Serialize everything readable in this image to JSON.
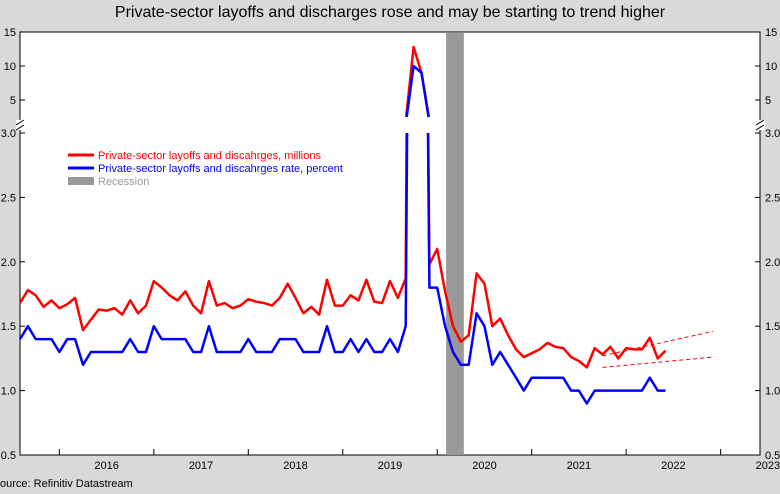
{
  "chart_data": {
    "type": "line",
    "title": "Private-sector layoffs and discharges rose and may be starting to trend higher",
    "source": "ource: Refinitiv Datastream",
    "x_tick_labels": [
      "2016",
      "2017",
      "2018",
      "2019",
      "2020",
      "2021",
      "2022",
      "2023"
    ],
    "x_range": [
      "2015-08",
      "2023-06"
    ],
    "y_upper_ticks": [
      "15",
      "10",
      "5"
    ],
    "y_lower_ticks": [
      "3.0",
      "2.5",
      "2.0",
      "1.5",
      "1.0",
      "0.5"
    ],
    "y_upper_range": [
      2.5,
      15
    ],
    "y_lower_range": [
      0.5,
      3.0
    ],
    "axis_break": "broken y-axis between 3.0 and 5",
    "grid": false,
    "legend_position": "top-left",
    "legend": [
      {
        "label": "Private-sector layoffs and discahrges, millions",
        "color": "#ff0000"
      },
      {
        "label": "Private-sector layoffs and discahrges rate, percent",
        "color": "#0000ff"
      },
      {
        "label": "Recession",
        "color": "#999999"
      }
    ],
    "recession": {
      "start": "2020-02",
      "end": "2020-04"
    },
    "start_date": "2015-08",
    "series": [
      {
        "name": "Private-sector layoffs and discahrges, millions",
        "color": "#ff0000",
        "values": [
          1.68,
          1.78,
          1.74,
          1.65,
          1.7,
          1.64,
          1.67,
          1.72,
          1.47,
          1.55,
          1.63,
          1.62,
          1.64,
          1.59,
          1.7,
          1.6,
          1.66,
          1.85,
          1.8,
          1.74,
          1.7,
          1.77,
          1.66,
          1.6,
          1.85,
          1.66,
          1.68,
          1.64,
          1.66,
          1.71,
          1.69,
          1.68,
          1.66,
          1.72,
          1.83,
          1.72,
          1.6,
          1.65,
          1.59,
          1.86,
          1.66,
          1.66,
          1.74,
          1.7,
          1.86,
          1.69,
          1.68,
          1.85,
          1.72,
          1.87,
          12.8,
          9.0,
          1.98,
          2.1,
          1.77,
          1.5,
          1.38,
          1.43,
          1.91,
          1.83,
          1.5,
          1.56,
          1.43,
          1.32,
          1.26,
          1.29,
          1.32,
          1.37,
          1.34,
          1.33,
          1.26,
          1.23,
          1.18,
          1.33,
          1.28,
          1.34,
          1.25,
          1.33,
          1.32,
          1.32,
          1.41,
          1.25,
          1.31
        ],
        "trend_lines": [
          {
            "from": [
              "2021-10",
              1.18
            ],
            "to": [
              "2022-12",
              1.26
            ]
          },
          {
            "from": [
              "2021-10",
              1.27
            ],
            "to": [
              "2022-12",
              1.46
            ]
          }
        ]
      },
      {
        "name": "Private-sector layoffs and discahrges rate, percent",
        "color": "#0000ff",
        "values": [
          1.4,
          1.5,
          1.4,
          1.4,
          1.4,
          1.3,
          1.4,
          1.4,
          1.2,
          1.3,
          1.3,
          1.3,
          1.3,
          1.3,
          1.4,
          1.3,
          1.3,
          1.5,
          1.4,
          1.4,
          1.4,
          1.4,
          1.3,
          1.3,
          1.5,
          1.3,
          1.3,
          1.3,
          1.3,
          1.4,
          1.3,
          1.3,
          1.3,
          1.4,
          1.4,
          1.4,
          1.3,
          1.3,
          1.3,
          1.5,
          1.3,
          1.3,
          1.4,
          1.3,
          1.4,
          1.3,
          1.3,
          1.4,
          1.3,
          1.5,
          10.0,
          9.0,
          1.8,
          1.8,
          1.5,
          1.3,
          1.2,
          1.2,
          1.6,
          1.5,
          1.2,
          1.3,
          1.2,
          1.1,
          1.0,
          1.1,
          1.1,
          1.1,
          1.1,
          1.1,
          1.0,
          1.0,
          0.9,
          1.0,
          1.0,
          1.0,
          1.0,
          1.0,
          1.0,
          1.0,
          1.1,
          1.0,
          1.0
        ]
      }
    ]
  }
}
